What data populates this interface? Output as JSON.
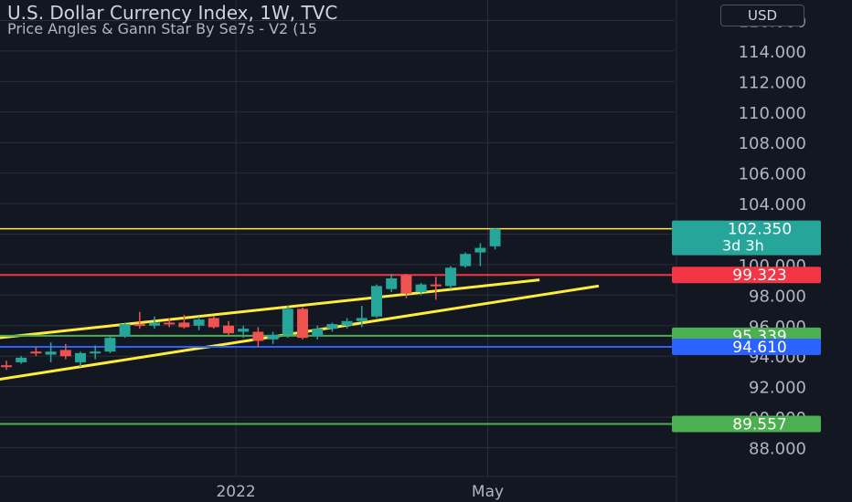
{
  "header": {
    "title": "U.S. Dollar Currency Index, 1W, TVC",
    "subtitle": "Price Angles & Gann Star By Se7s - V2 (15",
    "currency_button": "USD"
  },
  "colors": {
    "background": "#131722",
    "grid": "#2a2e39",
    "up": "#26a69a",
    "down": "#ef5350",
    "yellow": "#ffeb3b",
    "red_line": "#f23645",
    "green_line": "#4caf50",
    "blue_line": "#2962ff",
    "current_label": "#26a69a"
  },
  "chart_data": {
    "type": "candlestick",
    "title": "U.S. Dollar Currency Index, 1W, TVC",
    "ylim": [
      87.0,
      117.0
    ],
    "y_ticks": [
      "88.000",
      "90.000",
      "92.000",
      "94.000",
      "96.000",
      "98.000",
      "100.000",
      "102.000",
      "104.000",
      "106.000",
      "108.000",
      "110.000",
      "112.000",
      "114.000",
      "116.000"
    ],
    "x_labels": [
      {
        "label": "2022",
        "at_candle": 15.5
      },
      {
        "label": "May",
        "at_candle": 32.5
      }
    ],
    "candles": [
      {
        "o": 93.4,
        "h": 93.7,
        "l": 93.1,
        "c": 93.3
      },
      {
        "o": 93.6,
        "h": 94.0,
        "l": 93.5,
        "c": 93.9
      },
      {
        "o": 94.3,
        "h": 94.6,
        "l": 94.0,
        "c": 94.2
      },
      {
        "o": 94.1,
        "h": 94.9,
        "l": 93.6,
        "c": 94.3
      },
      {
        "o": 94.4,
        "h": 94.8,
        "l": 93.8,
        "c": 94.0
      },
      {
        "o": 93.6,
        "h": 94.3,
        "l": 93.3,
        "c": 94.2
      },
      {
        "o": 94.2,
        "h": 94.7,
        "l": 93.8,
        "c": 94.3
      },
      {
        "o": 94.3,
        "h": 95.3,
        "l": 94.2,
        "c": 95.2
      },
      {
        "o": 95.3,
        "h": 96.2,
        "l": 95.2,
        "c": 96.1
      },
      {
        "o": 96.1,
        "h": 96.9,
        "l": 95.8,
        "c": 96.0
      },
      {
        "o": 96.0,
        "h": 96.6,
        "l": 95.8,
        "c": 96.2
      },
      {
        "o": 96.2,
        "h": 96.5,
        "l": 95.9,
        "c": 96.1
      },
      {
        "o": 96.2,
        "h": 96.7,
        "l": 95.8,
        "c": 95.9
      },
      {
        "o": 96.0,
        "h": 96.6,
        "l": 95.7,
        "c": 96.4
      },
      {
        "o": 96.5,
        "h": 96.6,
        "l": 95.8,
        "c": 95.9
      },
      {
        "o": 96.0,
        "h": 96.3,
        "l": 95.4,
        "c": 95.5
      },
      {
        "o": 95.6,
        "h": 96.0,
        "l": 95.2,
        "c": 95.8
      },
      {
        "o": 95.6,
        "h": 95.9,
        "l": 94.6,
        "c": 95.0
      },
      {
        "o": 95.1,
        "h": 95.6,
        "l": 94.8,
        "c": 95.4
      },
      {
        "o": 95.4,
        "h": 97.3,
        "l": 95.2,
        "c": 97.1
      },
      {
        "o": 97.1,
        "h": 97.2,
        "l": 95.1,
        "c": 95.2
      },
      {
        "o": 95.3,
        "h": 96.0,
        "l": 95.1,
        "c": 95.8
      },
      {
        "o": 95.8,
        "h": 96.2,
        "l": 95.6,
        "c": 96.1
      },
      {
        "o": 96.0,
        "h": 96.5,
        "l": 95.8,
        "c": 96.3
      },
      {
        "o": 96.3,
        "h": 97.3,
        "l": 95.9,
        "c": 96.5
      },
      {
        "o": 96.6,
        "h": 98.7,
        "l": 96.5,
        "c": 98.6
      },
      {
        "o": 98.4,
        "h": 99.4,
        "l": 98.2,
        "c": 99.1
      },
      {
        "o": 99.3,
        "h": 99.4,
        "l": 97.8,
        "c": 98.1
      },
      {
        "o": 98.2,
        "h": 98.8,
        "l": 98.0,
        "c": 98.7
      },
      {
        "o": 98.7,
        "h": 99.2,
        "l": 97.7,
        "c": 98.6
      },
      {
        "o": 98.6,
        "h": 99.9,
        "l": 98.4,
        "c": 99.8
      },
      {
        "o": 99.9,
        "h": 100.8,
        "l": 99.8,
        "c": 100.7
      },
      {
        "o": 100.8,
        "h": 101.4,
        "l": 99.9,
        "c": 101.1
      },
      {
        "o": 101.2,
        "h": 102.4,
        "l": 101.0,
        "c": 102.35
      }
    ],
    "horizontal_lines": [
      {
        "value": 102.35,
        "color": "yellow",
        "style": "solid",
        "label": "102.350",
        "sublabel": "3d 3h"
      },
      {
        "value": 99.323,
        "color": "red_line",
        "label": "99.323"
      },
      {
        "value": 95.339,
        "color": "green_line",
        "label": "95.339"
      },
      {
        "value": 94.61,
        "color": "blue_line",
        "label": "94.610"
      },
      {
        "value": 89.557,
        "color": "green_line",
        "label": "89.557"
      }
    ],
    "trend_lines": [
      {
        "from": {
          "candle": -1,
          "value": 95.15
        },
        "to": {
          "candle": 36.0,
          "value": 99.0
        },
        "color": "yellow"
      },
      {
        "from": {
          "candle": -1,
          "value": 92.4
        },
        "to": {
          "candle": 40.0,
          "value": 98.6
        },
        "color": "yellow"
      }
    ]
  }
}
